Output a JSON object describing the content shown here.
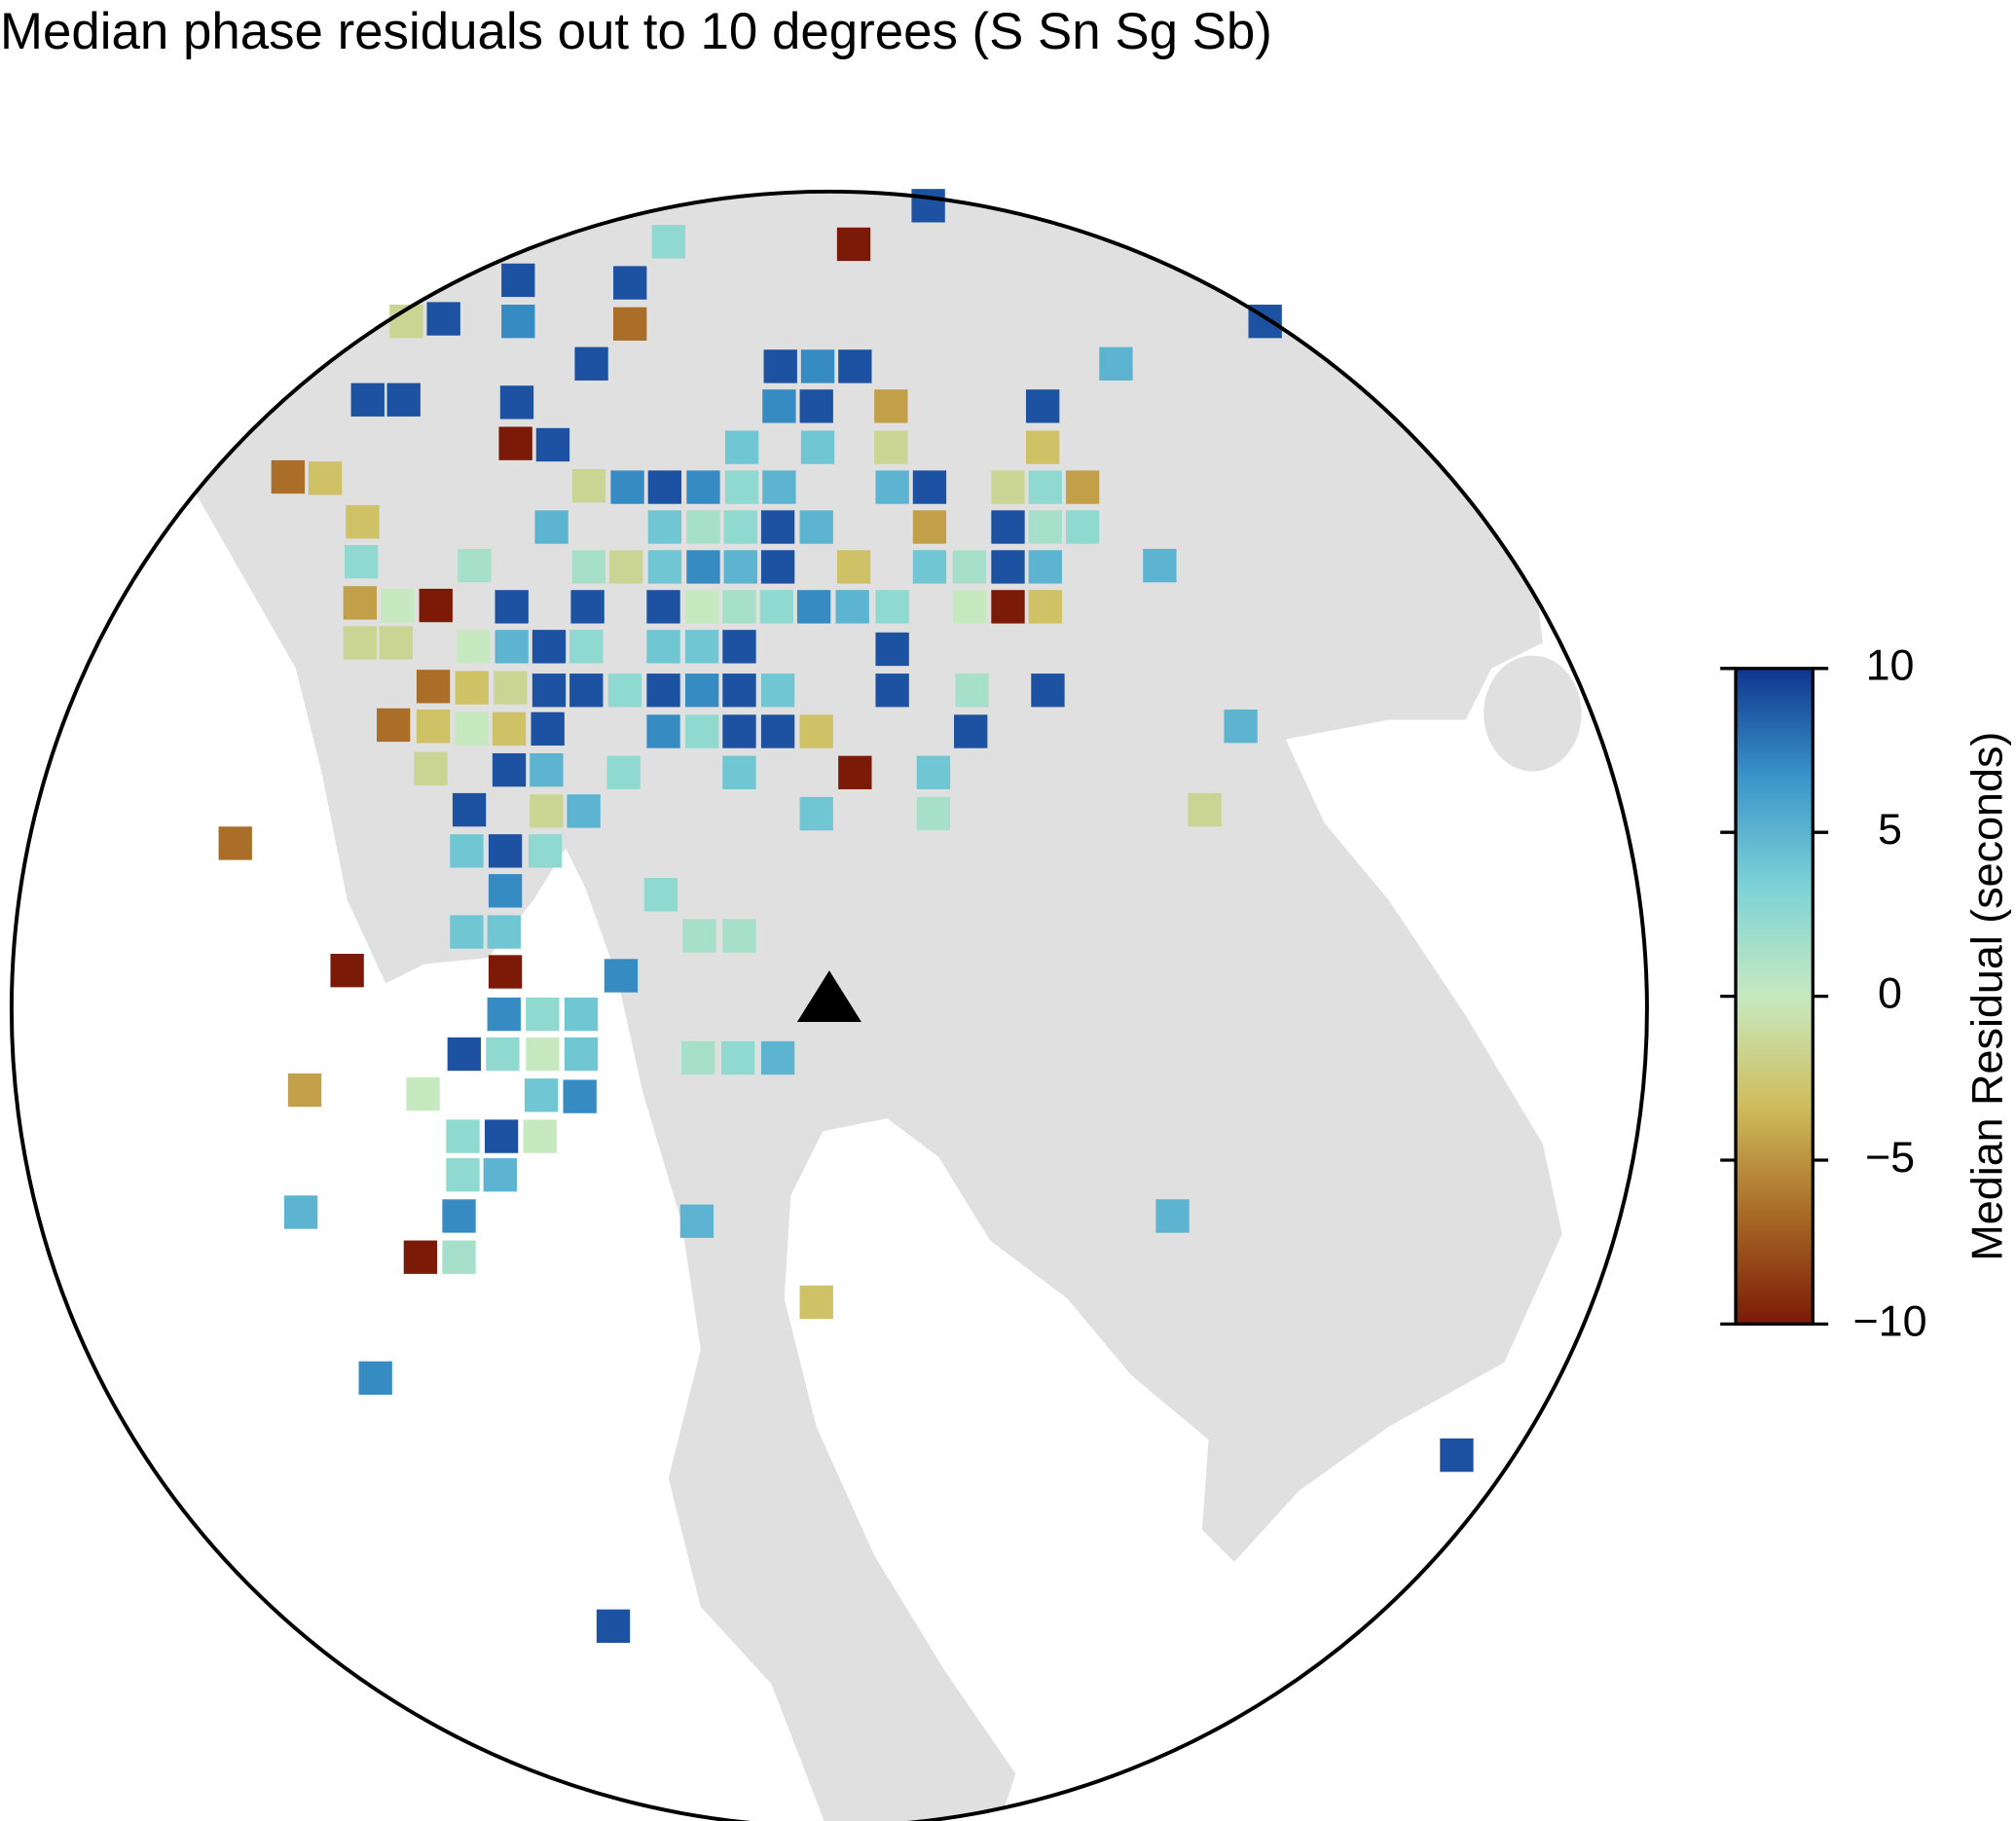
{
  "chart_data": {
    "type": "map",
    "title": "Median phase residuals out to 10 degrees (S Sn Sg Sb)",
    "colorbar_label": "Median Residual (seconds)",
    "ylim": [
      -10,
      10
    ],
    "yticks": [
      {
        "value": -10,
        "label": "−10"
      },
      {
        "value": -5,
        "label": "−5"
      },
      0,
      5,
      10
    ],
    "colormap": [
      "#7b1a07",
      "#a86a26",
      "#cfbd5c",
      "#c7e9c0",
      "#7dd3d6",
      "#3a95c9",
      "#0f3590"
    ],
    "values": [
      9,
      2.5,
      -10,
      9,
      9,
      -1.5,
      9,
      7,
      -6.5,
      9,
      9,
      5,
      9,
      9,
      9,
      9,
      7,
      9,
      7,
      9,
      -4.5,
      9,
      -10,
      9,
      4,
      4,
      -1.5,
      -3,
      -6.5,
      -3,
      -1.5,
      7,
      9,
      7,
      2.5,
      5,
      5,
      9,
      -1.5,
      2.5,
      -4.5,
      -3,
      5,
      4,
      1.5,
      2.5,
      9,
      5,
      -4.5,
      9,
      1.5,
      2.5,
      2.5,
      1.5,
      1.5,
      -1.5,
      4,
      7,
      5,
      9,
      -3,
      4,
      1.5,
      9,
      5,
      5,
      -4.5,
      0,
      -10,
      9,
      9,
      9,
      0,
      1.5,
      2.5,
      7,
      5,
      2.5,
      0,
      -10,
      -3,
      -1.5,
      -1.5,
      0,
      5,
      9,
      2.5,
      4,
      4,
      9,
      9,
      -6.5,
      -3,
      -1.5,
      9,
      9,
      2.5,
      9,
      7,
      9,
      4,
      9,
      1.5,
      9,
      -6.5,
      -3,
      0,
      -3,
      9,
      7,
      2.5,
      9,
      9,
      -3,
      9,
      5,
      -1.5,
      9,
      5,
      2.5,
      4,
      -10,
      4,
      9,
      -1.5,
      5,
      4,
      1.5,
      -1.5,
      -6.5,
      4,
      9,
      2.5,
      7,
      2.5,
      4,
      4,
      1.5,
      1.5,
      -10,
      -10,
      7,
      7,
      2.5,
      4,
      9,
      2.5,
      0,
      4,
      1.5,
      2.5,
      5,
      -4.5,
      0,
      4,
      7,
      2.5,
      9,
      0,
      2.5,
      5,
      5,
      7,
      5,
      5,
      -10,
      1.5,
      -3,
      7,
      9,
      9
    ]
  }
}
